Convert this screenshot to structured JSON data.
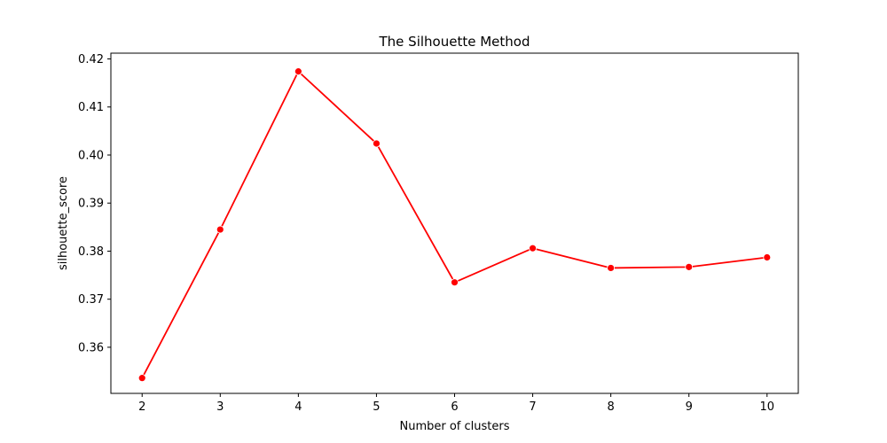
{
  "chart_data": {
    "type": "line",
    "title": "The Silhouette Method",
    "xlabel": "Number of clusters",
    "ylabel": "silhouette_score",
    "x": [
      2,
      3,
      4,
      5,
      6,
      7,
      8,
      9,
      10
    ],
    "series": [
      {
        "values": [
          0.3536,
          0.3845,
          0.4174,
          0.4024,
          0.3735,
          0.3806,
          0.3765,
          0.3767,
          0.3787
        ],
        "color": "#ff0000",
        "marker": "circle"
      }
    ],
    "xticks": [
      "2",
      "3",
      "4",
      "5",
      "6",
      "7",
      "8",
      "9",
      "10"
    ],
    "yticks": [
      {
        "value": 0.36,
        "label": "0.36"
      },
      {
        "value": 0.37,
        "label": "0.37"
      },
      {
        "value": 0.38,
        "label": "0.38"
      },
      {
        "value": 0.39,
        "label": "0.39"
      },
      {
        "value": 0.4,
        "label": "0.40"
      },
      {
        "value": 0.41,
        "label": "0.41"
      },
      {
        "value": 0.42,
        "label": "0.42"
      }
    ],
    "xlim": [
      1.6,
      10.4
    ],
    "ylim": [
      0.3504,
      0.4212
    ],
    "grid": false,
    "legend": "none"
  }
}
